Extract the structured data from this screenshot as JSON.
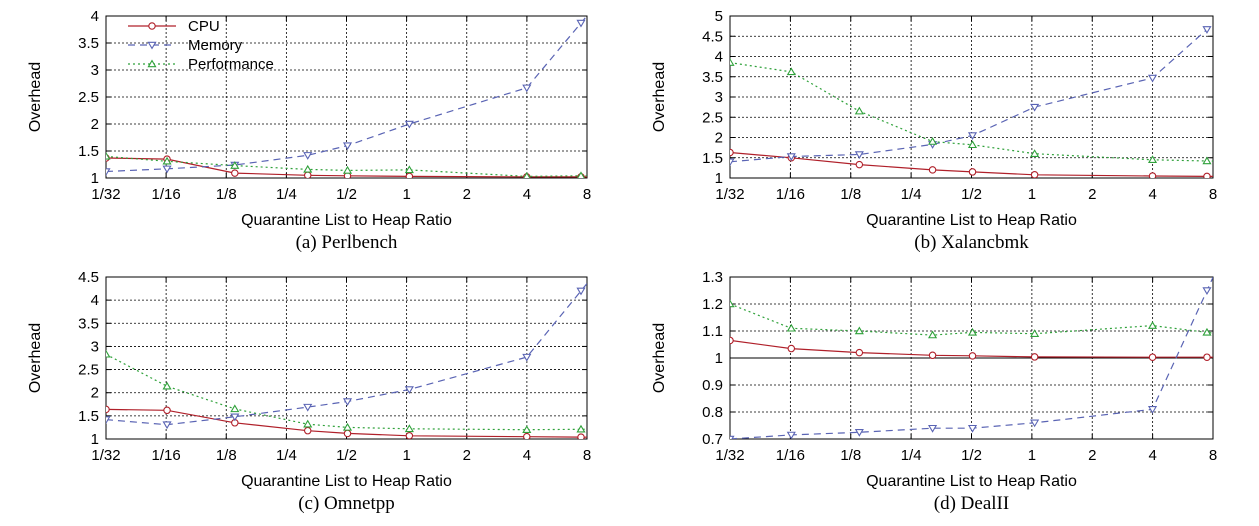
{
  "chart_data": [
    {
      "type": "line",
      "caption": "(a) Perlbench",
      "xlabel": "Quarantine List to Heap Ratio",
      "ylabel": "Overhead",
      "x_ticks": [
        "1/32",
        "1/16",
        "1/8",
        "1/4",
        "1/2",
        "1",
        "2",
        "4",
        "8"
      ],
      "x": [
        "1/32",
        "1/16",
        "1/8",
        "1/4",
        "1/2",
        "1",
        "4",
        "8"
      ],
      "ylim": [
        1,
        4
      ],
      "y_ticks": [
        "1",
        "1.5",
        "2",
        "2.5",
        "3",
        "3.5",
        "4"
      ],
      "y_tick_values": [
        1,
        1.5,
        2,
        2.5,
        3,
        3.5,
        4
      ],
      "grid": true,
      "legend": "top-left",
      "series": [
        {
          "name": "CPU",
          "values": [
            1.37,
            1.35,
            1.09,
            1.05,
            1.04,
            1.03,
            1.02,
            1.02
          ]
        },
        {
          "name": "Memory",
          "values": [
            1.12,
            1.17,
            1.24,
            1.42,
            1.6,
            2.0,
            2.67,
            3.87
          ]
        },
        {
          "name": "Performance",
          "values": [
            1.4,
            1.31,
            1.23,
            1.16,
            1.14,
            1.15,
            1.03,
            1.04
          ]
        }
      ]
    },
    {
      "type": "line",
      "caption": "(b) Xalancbmk",
      "xlabel": "Quarantine List to Heap Ratio",
      "ylabel": "Overhead",
      "x_ticks": [
        "1/32",
        "1/16",
        "1/8",
        "1/4",
        "1/2",
        "1",
        "2",
        "4",
        "8"
      ],
      "x": [
        "1/32",
        "1/16",
        "1/8",
        "1/4",
        "1/2",
        "1",
        "4",
        "8"
      ],
      "ylim": [
        1,
        5
      ],
      "y_ticks": [
        "1",
        "1.5",
        "2",
        "2.5",
        "3",
        "3.5",
        "4",
        "4.5",
        "5"
      ],
      "y_tick_values": [
        1,
        1.5,
        2,
        2.5,
        3,
        3.5,
        4,
        4.5,
        5
      ],
      "grid": true,
      "legend": "",
      "series": [
        {
          "name": "CPU",
          "values": [
            1.63,
            1.5,
            1.33,
            1.2,
            1.15,
            1.08,
            1.05,
            1.04
          ]
        },
        {
          "name": "Memory",
          "values": [
            1.4,
            1.53,
            1.58,
            1.83,
            2.05,
            2.75,
            3.47,
            4.67
          ]
        },
        {
          "name": "Performance",
          "values": [
            3.85,
            3.62,
            2.65,
            1.9,
            1.82,
            1.6,
            1.45,
            1.42
          ]
        }
      ]
    },
    {
      "type": "line",
      "caption": "(c) Omnetpp",
      "xlabel": "Quarantine List to Heap Ratio",
      "ylabel": "Overhead",
      "x_ticks": [
        "1/32",
        "1/16",
        "1/8",
        "1/4",
        "1/2",
        "1",
        "2",
        "4",
        "8"
      ],
      "x": [
        "1/32",
        "1/16",
        "1/8",
        "1/4",
        "1/2",
        "1",
        "4",
        "8"
      ],
      "ylim": [
        1,
        4.5
      ],
      "y_ticks": [
        "1",
        "1.5",
        "2",
        "2.5",
        "3",
        "3.5",
        "4",
        "4.5"
      ],
      "y_tick_values": [
        1,
        1.5,
        2,
        2.5,
        3,
        3.5,
        4,
        4.5
      ],
      "grid": true,
      "legend": "",
      "series": [
        {
          "name": "CPU",
          "values": [
            1.64,
            1.62,
            1.35,
            1.18,
            1.12,
            1.07,
            1.05,
            1.04
          ]
        },
        {
          "name": "Memory",
          "values": [
            1.42,
            1.31,
            1.48,
            1.69,
            1.81,
            2.07,
            2.77,
            4.2
          ]
        },
        {
          "name": "Performance",
          "values": [
            2.83,
            2.14,
            1.65,
            1.32,
            1.25,
            1.22,
            1.2,
            1.21
          ]
        }
      ]
    },
    {
      "type": "line",
      "caption": "(d) DealII",
      "xlabel": "Quarantine List to Heap Ratio",
      "ylabel": "Overhead",
      "x_ticks": [
        "1/32",
        "1/16",
        "1/8",
        "1/4",
        "1/2",
        "1",
        "2",
        "4",
        "8"
      ],
      "x": [
        "1/32",
        "1/16",
        "1/8",
        "1/4",
        "1/2",
        "1",
        "4",
        "8"
      ],
      "ylim": [
        0.7,
        1.3
      ],
      "y_ticks": [
        "0.7",
        "0.8",
        "0.9",
        "1",
        "1.1",
        "1.2",
        "1.3"
      ],
      "y_tick_values": [
        0.7,
        0.8,
        0.9,
        1.0,
        1.1,
        1.2,
        1.3
      ],
      "grid": true,
      "legend": "",
      "series": [
        {
          "name": "CPU",
          "values": [
            1.065,
            1.035,
            1.02,
            1.01,
            1.008,
            1.004,
            1.003,
            1.003
          ]
        },
        {
          "name": "Memory",
          "values": [
            0.7,
            0.715,
            0.725,
            0.74,
            0.74,
            0.76,
            0.81,
            1.25
          ]
        },
        {
          "name": "Performance",
          "values": [
            1.2,
            1.11,
            1.1,
            1.085,
            1.095,
            1.09,
            1.12,
            1.095
          ]
        }
      ]
    }
  ],
  "colors": {
    "cpu": "#b0202a",
    "memory": "#5a64b4",
    "performance": "#2fa13a",
    "grid": "#000000"
  }
}
